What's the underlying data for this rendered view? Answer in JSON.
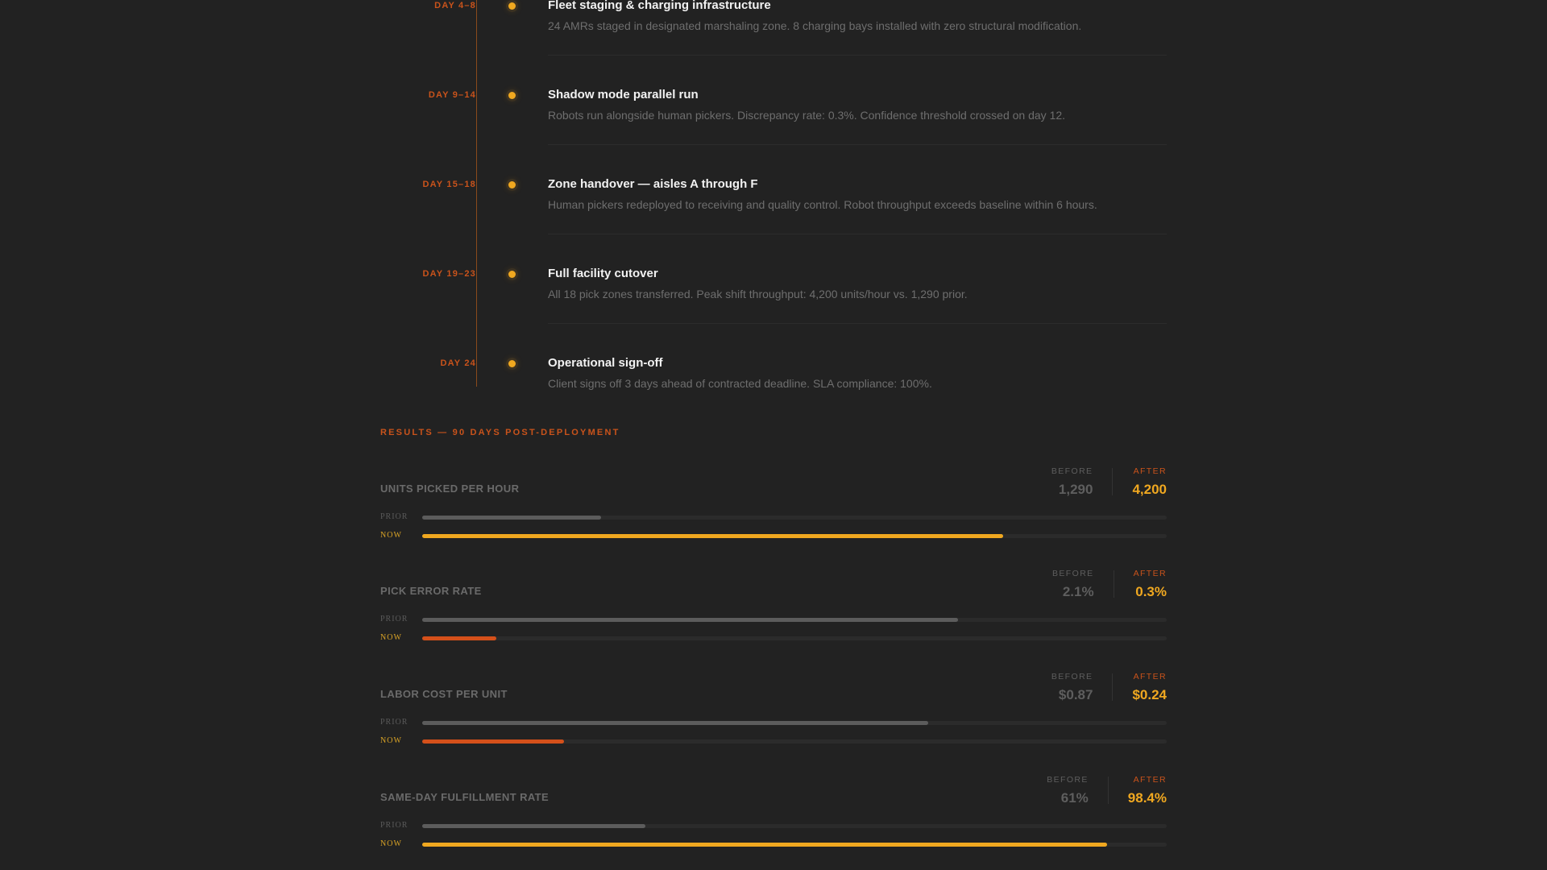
{
  "timeline": {
    "items": [
      {
        "day": "DAY 4–8",
        "title": "Fleet staging & charging infrastructure",
        "description": "24 AMRs staged in designated marshaling zone. 8 charging bays installed with zero structural modification."
      },
      {
        "day": "DAY 9–14",
        "title": "Shadow mode parallel run",
        "description": "Robots run alongside human pickers. Discrepancy rate: 0.3%. Confidence threshold crossed on day 12."
      },
      {
        "day": "DAY 15–18",
        "title": "Zone handover — aisles A through F",
        "description": "Human pickers redeployed to receiving and quality control. Robot throughput exceeds baseline within 6 hours."
      },
      {
        "day": "DAY 19–23",
        "title": "Full facility cutover",
        "description": "All 18 pick zones transferred. Peak shift throughput: 4,200 units/hour vs. 1,290 prior."
      },
      {
        "day": "DAY 24",
        "title": "Operational sign-off",
        "description": "Client signs off 3 days ahead of contracted deadline. SLA compliance: 100%."
      }
    ]
  },
  "results": {
    "title": "RESULTS — 90 DAYS POST-DEPLOYMENT",
    "before_label": "BEFORE",
    "after_label": "AFTER",
    "prior_label": "PRIOR",
    "now_label": "NOW",
    "metrics": [
      {
        "name": "UNITS PICKED PER HOUR",
        "before": "1,290",
        "after": "4,200",
        "prior_pct": 24,
        "now_pct": 78,
        "now_color": "#f0a820"
      },
      {
        "name": "PICK ERROR RATE",
        "before": "2.1%",
        "after": "0.3%",
        "prior_pct": 72,
        "now_pct": 10,
        "now_color": "#d4501a"
      },
      {
        "name": "LABOR COST PER UNIT",
        "before": "$0.87",
        "after": "$0.24",
        "prior_pct": 68,
        "now_pct": 19,
        "now_color": "#d4501a"
      },
      {
        "name": "SAME-DAY FULFILLMENT RATE",
        "before": "61%",
        "after": "98.4%",
        "prior_pct": 30,
        "now_pct": 92,
        "now_color": "#f0a820"
      }
    ]
  },
  "colors": {
    "background": "#222222",
    "accent_orange": "#c9531b",
    "accent_amber": "#f0a820",
    "prior_bar": "#5c5c5c",
    "track": "#2b2b2b"
  }
}
